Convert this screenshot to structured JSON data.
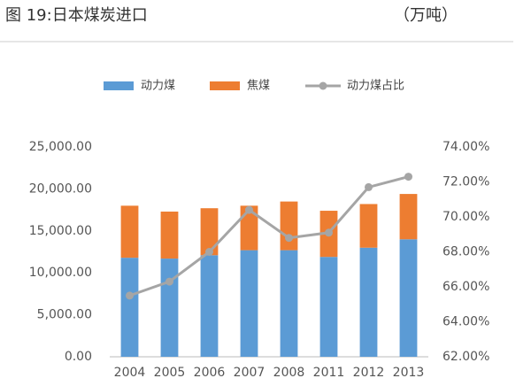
{
  "chart_data": {
    "type": "bar",
    "title": "图 19:日本煤炭进口",
    "unit_label": "（万吨）",
    "categories": [
      "2004",
      "2005",
      "2006",
      "2007",
      "2008",
      "2011",
      "2012",
      "2013"
    ],
    "series": [
      {
        "name": "动力煤",
        "color": "#5b9bd5",
        "type": "bar",
        "values": [
          11800,
          11700,
          12100,
          12700,
          12700,
          11900,
          13000,
          14000
        ]
      },
      {
        "name": "焦煤",
        "color": "#ed7d31",
        "type": "bar",
        "values": [
          6200,
          5600,
          5600,
          5300,
          5800,
          5500,
          5200,
          5400
        ]
      },
      {
        "name": "动力煤占比",
        "color": "#a5a5a5",
        "type": "line",
        "axis": "y2",
        "values": [
          65.5,
          66.3,
          68.0,
          70.4,
          68.8,
          69.1,
          71.7,
          72.3
        ]
      }
    ],
    "ylim": [
      0,
      25000
    ],
    "yticks": [
      {
        "value": 0,
        "label": "0.00"
      },
      {
        "value": 5000,
        "label": "5,000.00"
      },
      {
        "value": 10000,
        "label": "10,000.00"
      },
      {
        "value": 15000,
        "label": "15,000.00"
      },
      {
        "value": 20000,
        "label": "20,000.00"
      },
      {
        "value": 25000,
        "label": "25,000.00"
      }
    ],
    "y2lim": [
      62,
      74
    ],
    "y2ticks": [
      {
        "value": 62,
        "label": "62.00%"
      },
      {
        "value": 64,
        "label": "64.00%"
      },
      {
        "value": 66,
        "label": "66.00%"
      },
      {
        "value": 68,
        "label": "68.00%"
      },
      {
        "value": 70,
        "label": "70.00%"
      },
      {
        "value": 72,
        "label": "72.00%"
      },
      {
        "value": 74,
        "label": "74.00%"
      }
    ],
    "stacked": true,
    "grid": false
  }
}
